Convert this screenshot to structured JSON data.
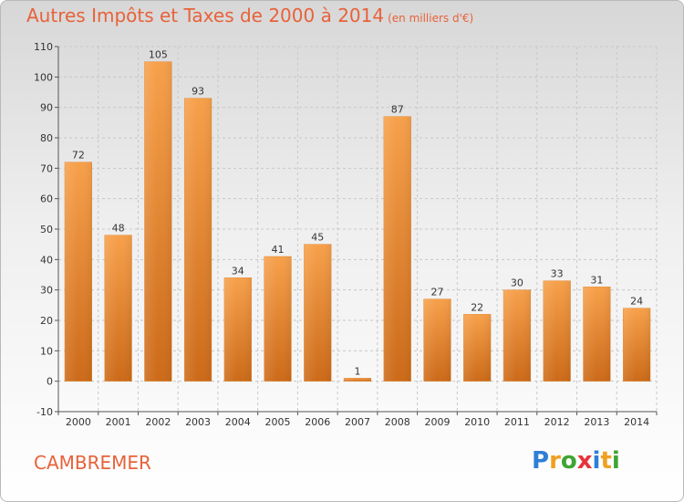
{
  "title": "Autres Impôts et Taxes de 2000 à 2014",
  "subtitle": "(en milliers d'€)",
  "place": "CAMBREMER",
  "logo": {
    "letters": [
      "P",
      "r",
      "o",
      "x",
      "i",
      "t",
      "i"
    ],
    "colors": [
      "#2e7fd6",
      "#f0a020",
      "#3fa535",
      "#e8323a",
      "#2e7fd6",
      "#f0a020",
      "#3fa535"
    ]
  },
  "chart_data": {
    "type": "bar",
    "title": "Autres Impôts et Taxes de 2000 à 2014",
    "subtitle": "(en milliers d'€)",
    "xlabel": "",
    "ylabel": "",
    "categories": [
      "2000",
      "2001",
      "2002",
      "2003",
      "2004",
      "2005",
      "2006",
      "2007",
      "2008",
      "2009",
      "2010",
      "2011",
      "2012",
      "2013",
      "2014"
    ],
    "values": [
      72,
      48,
      105,
      93,
      34,
      41,
      45,
      1,
      87,
      27,
      22,
      30,
      33,
      31,
      24
    ],
    "ylim": [
      -10,
      110
    ],
    "yticks": [
      -10,
      0,
      10,
      20,
      30,
      40,
      50,
      60,
      70,
      80,
      90,
      100,
      110
    ],
    "grid": true,
    "bar_color": "#f0923a"
  }
}
